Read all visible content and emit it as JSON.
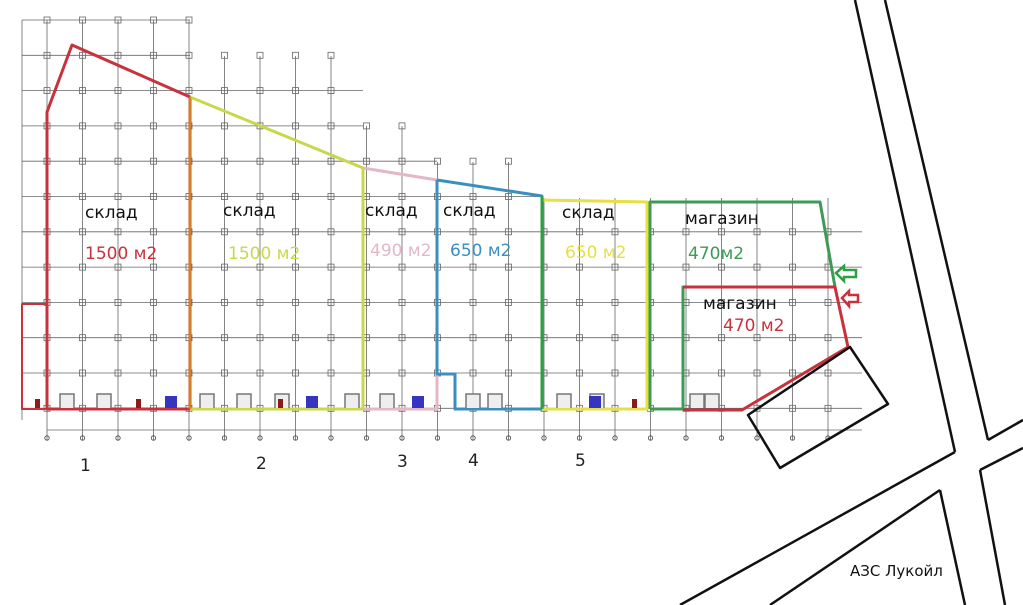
{
  "units": [
    {
      "number": "1",
      "type": "склад",
      "area": "1500 м2",
      "color": "#c8323c"
    },
    {
      "number": "2",
      "type": "склад",
      "area": "1500 м2",
      "color": "#c9d84a"
    },
    {
      "number": "3",
      "type": "склад",
      "area": "490 м2",
      "color": "#e4b7c6"
    },
    {
      "number": "4",
      "type": "склад",
      "area": "650 м2",
      "color": "#3a8fc0"
    },
    {
      "number": "5",
      "type": "склад",
      "area": "650 м2",
      "color": "#e6e044"
    }
  ],
  "shops": [
    {
      "type": "магазин",
      "area": "470м2",
      "color": "#3f9a56"
    },
    {
      "type": "магазин",
      "area": "470 м2",
      "color": "#c8323c"
    }
  ],
  "gas_station": "АЗС Лукойл",
  "colors": {
    "grid": "#555555",
    "wall_green": "#2f9e44",
    "shop_outline": "#3f8a3a",
    "roads": "#111111"
  }
}
